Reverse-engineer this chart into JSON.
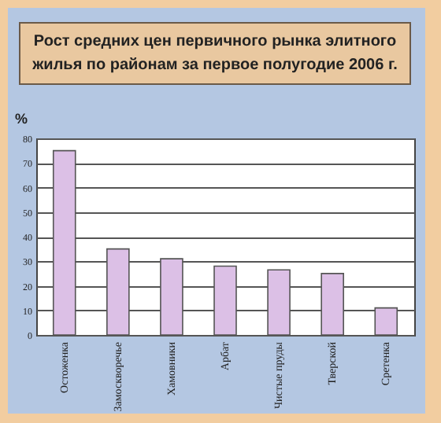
{
  "chart_data": {
    "type": "bar",
    "title": "Рост средних цен первичного рынка элитного жилья по районам за первое полугодие 2006 г.",
    "ylabel": "%",
    "categories": [
      "Остоженка",
      "Замоскворечье",
      "Хамовники",
      "Арбат",
      "Чистые пруды",
      "Тверской",
      "Сретенка"
    ],
    "values": [
      75,
      35,
      31,
      28,
      26.5,
      25,
      11
    ],
    "color": "#dcc0e6",
    "ylim": [
      0,
      80
    ],
    "yticks": [
      0,
      10,
      20,
      30,
      40,
      50,
      60,
      70,
      80
    ],
    "grid": "y"
  }
}
